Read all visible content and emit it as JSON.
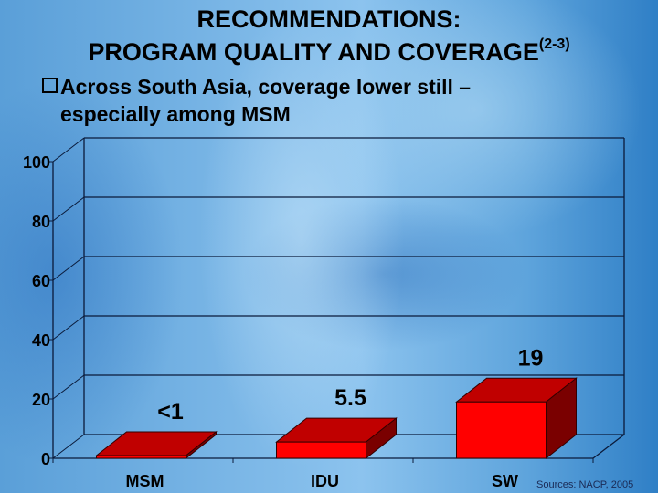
{
  "title": {
    "line1": "RECOMMENDATIONS:",
    "line2": "PROGRAM QUALITY AND COVERAGE",
    "superscript": "(2-3)"
  },
  "bullet": {
    "icon": "checkbox-square-icon",
    "line1": "Across South Asia, coverage lower still –",
    "line2": "especially among MSM"
  },
  "source": "Sources: NACP, 2005",
  "colors": {
    "bar_front": "#ff0000",
    "bar_top": "#c00000",
    "bar_side": "#7a0000",
    "grid": "#0a1a3a"
  },
  "chart_data": {
    "type": "bar",
    "style": "3d-column",
    "title": "",
    "categories": [
      "MSM",
      "IDU",
      "SW"
    ],
    "values": [
      0.5,
      5.5,
      19
    ],
    "data_labels": [
      "<1",
      "5.5",
      "19"
    ],
    "xlabel": "",
    "ylabel": "",
    "ylim": [
      0,
      100
    ],
    "yticks": [
      0,
      20,
      40,
      60,
      80,
      100
    ],
    "ytick_labels": [
      "0",
      "20",
      "40",
      "60",
      "80",
      "100"
    ],
    "grid": true,
    "legend": null,
    "annotation": "Sources: NACP, 2005"
  }
}
